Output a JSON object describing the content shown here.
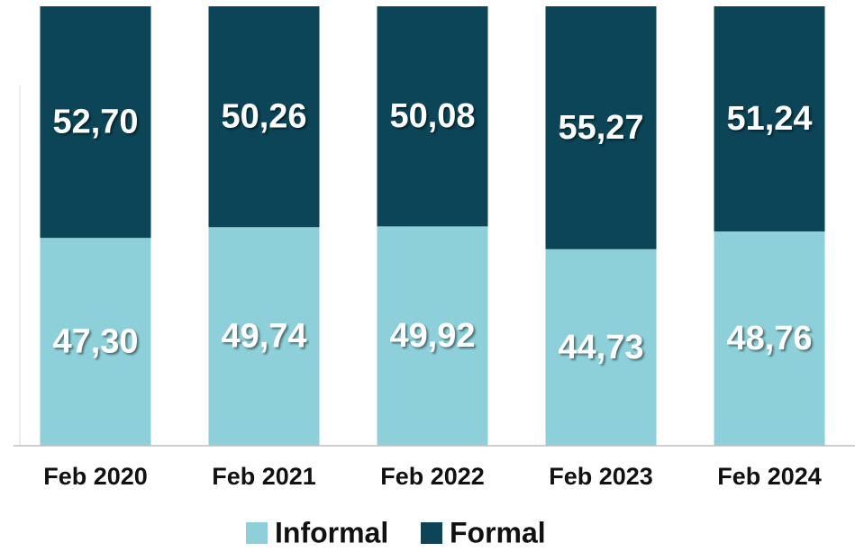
{
  "chart_data": {
    "type": "stacked-bar",
    "categories": [
      "Feb 2020",
      "Feb 2021",
      "Feb 2022",
      "Feb 2023",
      "Feb 2024"
    ],
    "series": [
      {
        "name": "Informal",
        "color": "#8dd0d9",
        "values": [
          47.3,
          49.74,
          49.92,
          44.73,
          48.76
        ],
        "value_labels": [
          "47,30",
          "49,74",
          "49,92",
          "44,73",
          "48,76"
        ]
      },
      {
        "name": "Formal",
        "color": "#0b4557",
        "values": [
          52.7,
          50.26,
          50.08,
          55.27,
          51.24
        ],
        "value_labels": [
          "52,70",
          "50,26",
          "50,08",
          "55,27",
          "51,24"
        ]
      }
    ],
    "ylim": [
      0,
      100
    ]
  }
}
